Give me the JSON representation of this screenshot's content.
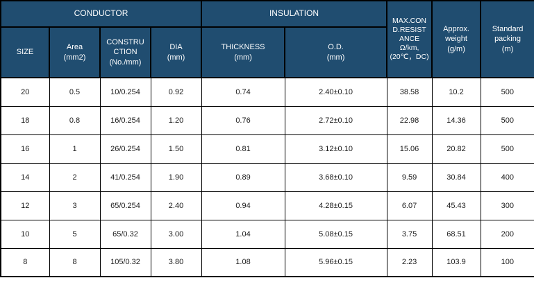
{
  "table": {
    "headers": {
      "conductor": "CONDUCTOR",
      "insulation": "INSULATION",
      "max_resistance": "MAX.CON\nD.RESIST\nANCE\nΩ/km,\n(20℃，DC)",
      "approx_weight": "Approx.\nweight\n(g/m)",
      "standard_packing": "Standard\npacking\n(m)",
      "size": "SIZE",
      "area": "Area\n(mm2)",
      "construction": "CONSTRU\nCTION\n(No./mm)",
      "dia": "DIA\n(mm)",
      "thickness": "THICKNESS\n(mm)",
      "od": "O.D.\n(mm)"
    },
    "column_keys": [
      "size",
      "area",
      "construction",
      "dia",
      "thickness",
      "od",
      "max-resistance",
      "approx-weight",
      "standard-packing"
    ],
    "rows": [
      [
        "20",
        "0.5",
        "10/0.254",
        "0.92",
        "0.74",
        "2.40±0.10",
        "38.58",
        "10.2",
        "500"
      ],
      [
        "18",
        "0.8",
        "16/0.254",
        "1.20",
        "0.76",
        "2.72±0.10",
        "22.98",
        "14.36",
        "500"
      ],
      [
        "16",
        "1",
        "26/0.254",
        "1.50",
        "0.81",
        "3.12±0.10",
        "15.06",
        "20.82",
        "500"
      ],
      [
        "14",
        "2",
        "41/0.254",
        "1.90",
        "0.89",
        "3.68±0.10",
        "9.59",
        "30.84",
        "400"
      ],
      [
        "12",
        "3",
        "65/0.254",
        "2.40",
        "0.94",
        "4.28±0.15",
        "6.07",
        "45.43",
        "300"
      ],
      [
        "10",
        "5",
        "65/0.32",
        "3.00",
        "1.04",
        "5.08±0.15",
        "3.75",
        "68.51",
        "200"
      ],
      [
        "8",
        "8",
        "105/0.32",
        "3.80",
        "1.08",
        "5.96±0.15",
        "2.23",
        "103.9",
        "100"
      ]
    ],
    "colors": {
      "header_bg": "#204D70",
      "header_text": "#FFFFFF",
      "body_text": "#1A1A1A",
      "border": "#000000",
      "body_bg": "#FFFFFF"
    }
  }
}
